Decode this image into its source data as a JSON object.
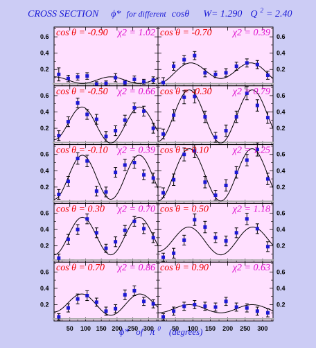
{
  "header": {
    "cross_section": "CROSS SECTION",
    "phi": "ϕ*",
    "for_different": "for different",
    "cos": "cosθ",
    "w_eq": "W= 1.290",
    "q2_eq": "Q",
    "q2_sup": "2",
    "q2_val": "= 2.40"
  },
  "footer": {
    "phi": "ϕ*",
    "of": "of",
    "pi": "π",
    "pi_sup": "0",
    "units": "(degrees)"
  },
  "colors": {
    "page_bg": "#ccccf5",
    "panel_bg": "#ffe0ff",
    "title": "#1a1ad6",
    "cos_label": "#ee0000",
    "chi_label": "#dd11cc",
    "points": "#1c17d4",
    "curve": "#000000"
  },
  "chart_data": {
    "type": "scatter",
    "xlabel": "ϕ* of π0 (degrees)",
    "xlim": [
      0,
      330
    ],
    "ylim": [
      0,
      0.72
    ],
    "x_ticks": [
      50,
      100,
      150,
      200,
      250,
      300
    ],
    "y_ticks": [
      0.2,
      0.4,
      0.6
    ],
    "y_tick_labels": [
      "0.2",
      "0.4",
      "0.6"
    ],
    "x": [
      15,
      45,
      75,
      105,
      135,
      165,
      195,
      225,
      255,
      285,
      315
    ],
    "panels": [
      {
        "cos_label": "cos θ = -0.90",
        "chi_label": "χ2 = 1.02",
        "y": [
          0.14,
          0.09,
          0.11,
          0.12,
          0.02,
          0.03,
          0.1,
          0.04,
          0.08,
          0.05,
          0.07
        ],
        "err": [
          0.08,
          0.04,
          0.04,
          0.04,
          0.03,
          0.03,
          0.05,
          0.03,
          0.04,
          0.03,
          0.04
        ],
        "curve": {
          "a": 0.07,
          "b": 0.0,
          "c": 0.04
        }
      },
      {
        "cos_label": "cos θ = -0.70",
        "chi_label": "χ2 = 0.39",
        "y": [
          0.04,
          0.24,
          0.32,
          0.37,
          0.16,
          0.14,
          0.16,
          0.24,
          0.28,
          0.26,
          0.13
        ],
        "err": [
          0.06,
          0.05,
          0.05,
          0.05,
          0.05,
          0.04,
          0.05,
          0.05,
          0.05,
          0.05,
          0.05
        ],
        "curve": {
          "a": 0.17,
          "b": -0.03,
          "c": -0.11
        }
      },
      {
        "cos_label": "cos θ = -0.50",
        "chi_label": "χ2 = 0.66",
        "y": [
          0.11,
          0.28,
          0.51,
          0.37,
          0.31,
          0.1,
          0.17,
          0.3,
          0.45,
          0.41,
          0.2
        ],
        "err": [
          0.06,
          0.06,
          0.06,
          0.06,
          0.06,
          0.06,
          0.06,
          0.06,
          0.06,
          0.06,
          0.06
        ],
        "curve": {
          "a": 0.25,
          "b": 0.02,
          "c": -0.21
        }
      },
      {
        "cos_label": "cos θ = -0.30",
        "chi_label": "χ2 = 0.79",
        "y": [
          0.13,
          0.36,
          0.58,
          0.59,
          0.34,
          0.09,
          0.17,
          0.34,
          0.63,
          0.48,
          0.33
        ],
        "err": [
          0.06,
          0.07,
          0.08,
          0.08,
          0.07,
          0.06,
          0.07,
          0.07,
          0.08,
          0.07,
          0.07
        ],
        "curve": {
          "a": 0.35,
          "b": 0.01,
          "c": -0.32
        }
      },
      {
        "cos_label": "cos θ = -0.10",
        "chi_label": "χ2 = 0.39",
        "y": [
          0.11,
          0.27,
          0.55,
          0.52,
          0.15,
          0.14,
          0.38,
          0.47,
          0.5,
          0.35,
          0.31
        ],
        "err": [
          0.06,
          0.06,
          0.07,
          0.07,
          0.06,
          0.06,
          0.06,
          0.07,
          0.07,
          0.06,
          0.06
        ],
        "curve": {
          "a": 0.32,
          "b": 0.0,
          "c": -0.27
        }
      },
      {
        "cos_label": "cos θ = 0.10",
        "chi_label": "χ2 = 1.25",
        "y": [
          0.13,
          0.29,
          0.6,
          0.64,
          0.26,
          0.1,
          0.22,
          0.38,
          0.53,
          0.66,
          0.3
        ],
        "err": [
          0.06,
          0.07,
          0.08,
          0.08,
          0.07,
          0.06,
          0.07,
          0.07,
          0.07,
          0.08,
          0.07
        ],
        "curve": {
          "a": 0.35,
          "b": 0.0,
          "c": -0.32
        }
      },
      {
        "cos_label": "cos θ = 0.30",
        "chi_label": "χ2 = 0.70",
        "y": [
          0.05,
          0.28,
          0.4,
          0.53,
          0.36,
          0.17,
          0.25,
          0.39,
          0.5,
          0.41,
          0.3
        ],
        "err": [
          0.05,
          0.06,
          0.06,
          0.06,
          0.06,
          0.05,
          0.06,
          0.06,
          0.06,
          0.06,
          0.06
        ],
        "curve": {
          "a": 0.32,
          "b": 0.0,
          "c": -0.23
        }
      },
      {
        "cos_label": "cos θ = 0.50",
        "chi_label": "χ2 = 1.18",
        "y": [
          0.06,
          0.11,
          0.27,
          0.52,
          0.43,
          0.3,
          0.26,
          0.36,
          0.53,
          0.41,
          0.19
        ],
        "err": [
          0.05,
          0.06,
          0.06,
          0.07,
          0.07,
          0.06,
          0.06,
          0.06,
          0.07,
          0.06,
          0.06
        ],
        "curve": {
          "a": 0.27,
          "b": 0.02,
          "c": -0.16
        }
      },
      {
        "cos_label": "cos θ = 0.70",
        "chi_label": "χ2 = 0.86",
        "y": [
          0.05,
          0.16,
          0.27,
          0.31,
          0.23,
          0.12,
          0.15,
          0.32,
          0.37,
          0.24,
          0.21
        ],
        "err": [
          0.04,
          0.05,
          0.06,
          0.06,
          0.05,
          0.05,
          0.05,
          0.06,
          0.06,
          0.05,
          0.05
        ],
        "curve": {
          "a": 0.21,
          "b": 0.02,
          "c": -0.12
        }
      },
      {
        "cos_label": "cos θ = 0.90",
        "chi_label": "χ2 = 0.63",
        "y": [
          0.05,
          0.12,
          0.18,
          0.2,
          0.18,
          0.17,
          0.24,
          0.17,
          0.16,
          0.12,
          0.1
        ],
        "err": [
          0.04,
          0.05,
          0.05,
          0.05,
          0.05,
          0.05,
          0.05,
          0.05,
          0.05,
          0.05,
          0.05
        ],
        "curve": {
          "a": 0.15,
          "b": 0.0,
          "c": -0.05
        }
      }
    ]
  }
}
